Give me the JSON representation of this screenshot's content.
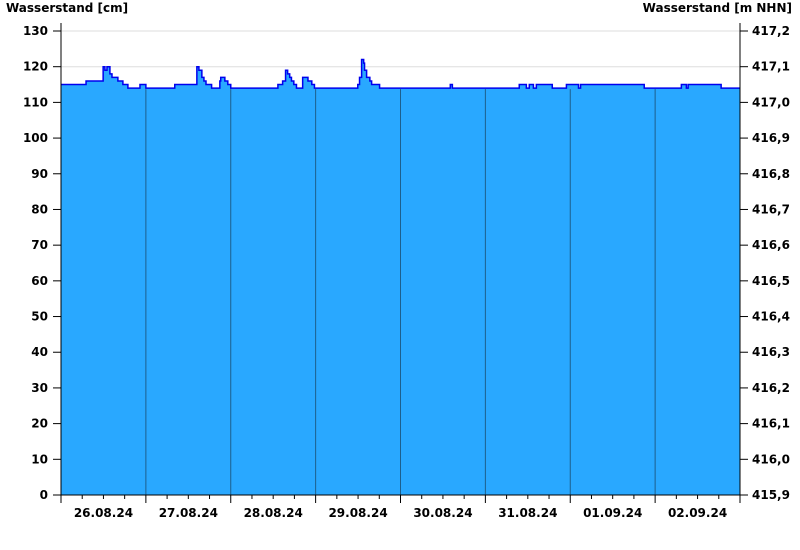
{
  "chart_data": {
    "type": "area",
    "ylabel_left": "Wasserstand [cm]",
    "ylabel_right": "Wasserstand [m NHN]",
    "ylim": [
      0,
      130
    ],
    "yticks": [
      0,
      10,
      20,
      30,
      40,
      50,
      60,
      70,
      80,
      90,
      100,
      110,
      120,
      130
    ],
    "yticks_right": [
      "415,9",
      "416,0",
      "416,1",
      "416,2",
      "416,3",
      "416,4",
      "416,5",
      "416,6",
      "416,7",
      "416,8",
      "416,9",
      "417,0",
      "417,1",
      "417,2"
    ],
    "xlim": [
      "2024-08-26 00:00",
      "2024-09-03 00:00"
    ],
    "xtick_labels": [
      "26.08.24",
      "27.08.24",
      "28.08.24",
      "29.08.24",
      "30.08.24",
      "31.08.24",
      "01.09.24",
      "02.09.24"
    ],
    "grid": "horizontal",
    "colors": {
      "fill": "#29a8ff",
      "line": "#0000ee",
      "day_separator": "#1d5f8c",
      "grid": "#dddddd"
    },
    "series": [
      {
        "points": [
          [
            "2024-08-26 00:00",
            115
          ],
          [
            "2024-08-26 07:05",
            116
          ],
          [
            "2024-08-26 11:55",
            120
          ],
          [
            "2024-08-26 12:25",
            119
          ],
          [
            "2024-08-26 13:00",
            120
          ],
          [
            "2024-08-26 13:50",
            118
          ],
          [
            "2024-08-26 14:25",
            117
          ],
          [
            "2024-08-26 16:05",
            116
          ],
          [
            "2024-08-26 17:30",
            115
          ],
          [
            "2024-08-26 18:55",
            114
          ],
          [
            "2024-08-26 22:20",
            115
          ],
          [
            "2024-08-27 00:00",
            114
          ],
          [
            "2024-08-27 08:10",
            115
          ],
          [
            "2024-08-27 14:25",
            120
          ],
          [
            "2024-08-27 15:00",
            119
          ],
          [
            "2024-08-27 15:50",
            117
          ],
          [
            "2024-08-27 16:25",
            116
          ],
          [
            "2024-08-27 17:00",
            115
          ],
          [
            "2024-08-27 18:35",
            114
          ],
          [
            "2024-08-27 20:55",
            116
          ],
          [
            "2024-08-27 21:10",
            117
          ],
          [
            "2024-08-27 22:20",
            116
          ],
          [
            "2024-08-27 23:10",
            115
          ],
          [
            "2024-08-28 00:00",
            114
          ],
          [
            "2024-08-28 13:20",
            115
          ],
          [
            "2024-08-28 14:40",
            116
          ],
          [
            "2024-08-28 15:30",
            119
          ],
          [
            "2024-08-28 16:05",
            118
          ],
          [
            "2024-08-28 16:40",
            117
          ],
          [
            "2024-08-28 17:10",
            116
          ],
          [
            "2024-08-28 17:50",
            115
          ],
          [
            "2024-08-28 18:35",
            114
          ],
          [
            "2024-08-28 20:20",
            117
          ],
          [
            "2024-08-28 21:50",
            116
          ],
          [
            "2024-08-28 22:55",
            115
          ],
          [
            "2024-08-28 23:40",
            114
          ],
          [
            "2024-08-29 11:55",
            115
          ],
          [
            "2024-08-29 12:25",
            117
          ],
          [
            "2024-08-29 13:00",
            122
          ],
          [
            "2024-08-29 13:35",
            121
          ],
          [
            "2024-08-29 13:50",
            119
          ],
          [
            "2024-08-29 14:25",
            117
          ],
          [
            "2024-08-29 15:20",
            116
          ],
          [
            "2024-08-29 15:50",
            115
          ],
          [
            "2024-08-29 18:05",
            114
          ],
          [
            "2024-08-30 14:05",
            115
          ],
          [
            "2024-08-30 14:40",
            114
          ],
          [
            "2024-08-31 09:35",
            115
          ],
          [
            "2024-08-31 11:35",
            114
          ],
          [
            "2024-08-31 12:25",
            115
          ],
          [
            "2024-08-31 13:35",
            114
          ],
          [
            "2024-08-31 14:25",
            115
          ],
          [
            "2024-08-31 18:55",
            114
          ],
          [
            "2024-08-31 22:55",
            115
          ],
          [
            "2024-09-01 02:20",
            114
          ],
          [
            "2024-09-01 02:55",
            115
          ],
          [
            "2024-09-01 20:55",
            114
          ],
          [
            "2024-09-02 07:25",
            115
          ],
          [
            "2024-09-02 08:50",
            114
          ],
          [
            "2024-09-02 09:20",
            115
          ],
          [
            "2024-09-02 18:40",
            114
          ],
          [
            "2024-09-02 23:50",
            114
          ]
        ]
      }
    ]
  }
}
